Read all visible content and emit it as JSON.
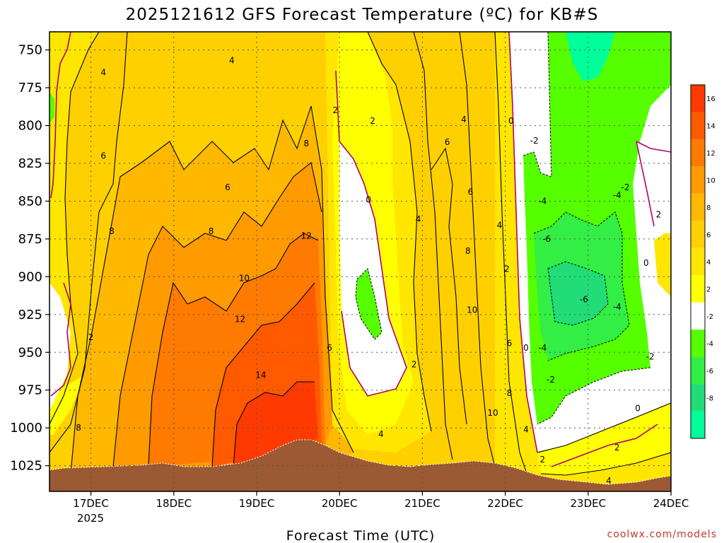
{
  "chart_data": {
    "type": "heatmap",
    "title": "2025121612 GFS Forecast Temperature (ºC) for KB#S",
    "xlabel": "Forecast Time (UTC)",
    "ylabel": "",
    "credit": "coolwx.com/models",
    "year_label": "2025",
    "x_ticks": [
      "17DEC",
      "18DEC",
      "19DEC",
      "20DEC",
      "21DEC",
      "22DEC",
      "23DEC",
      "24DEC"
    ],
    "y_ticks": [
      750,
      775,
      800,
      825,
      850,
      875,
      900,
      925,
      950,
      975,
      1000,
      1025
    ],
    "xlim_days": [
      16.5,
      24.0
    ],
    "ylim_hpa": [
      738,
      1042
    ],
    "colorbar": {
      "labels": [
        16,
        14,
        12,
        10,
        8,
        6,
        4,
        2,
        -2,
        -4,
        -6,
        -8
      ],
      "colors": [
        "#ff3a00",
        "#ff5a00",
        "#ff7a00",
        "#ff9a00",
        "#ffb800",
        "#ffd000",
        "#ffe600",
        "#ffff00",
        "#ffffff",
        "#55ff00",
        "#33ee44",
        "#22dd77",
        "#00ff99"
      ]
    },
    "contour_labels": [
      {
        "text": "4",
        "x_day": 17.15,
        "p": 765
      },
      {
        "text": "6",
        "x_day": 17.15,
        "p": 820
      },
      {
        "text": "8",
        "x_day": 17.25,
        "p": 870
      },
      {
        "text": "2",
        "x_day": 17.0,
        "p": 940
      },
      {
        "text": "8",
        "x_day": 16.85,
        "p": 1000
      },
      {
        "text": "4",
        "x_day": 18.7,
        "p": 757
      },
      {
        "text": "6",
        "x_day": 18.65,
        "p": 841
      },
      {
        "text": "8",
        "x_day": 18.45,
        "p": 870
      },
      {
        "text": "10",
        "x_day": 18.85,
        "p": 901
      },
      {
        "text": "12",
        "x_day": 18.8,
        "p": 928
      },
      {
        "text": "14",
        "x_day": 19.05,
        "p": 965
      },
      {
        "text": "8",
        "x_day": 19.6,
        "p": 812
      },
      {
        "text": "12",
        "x_day": 19.6,
        "p": 873
      },
      {
        "text": "6",
        "x_day": 19.88,
        "p": 947
      },
      {
        "text": "2",
        "x_day": 19.95,
        "p": 790
      },
      {
        "text": "2",
        "x_day": 20.4,
        "p": 797
      },
      {
        "text": "0",
        "x_day": 20.35,
        "p": 849
      },
      {
        "text": "4",
        "x_day": 20.5,
        "p": 1004
      },
      {
        "text": "2",
        "x_day": 20.9,
        "p": 958
      },
      {
        "text": "4",
        "x_day": 20.95,
        "p": 862
      },
      {
        "text": "6",
        "x_day": 21.3,
        "p": 811
      },
      {
        "text": "4",
        "x_day": 21.5,
        "p": 796
      },
      {
        "text": "6",
        "x_day": 21.58,
        "p": 844
      },
      {
        "text": "8",
        "x_day": 21.55,
        "p": 883
      },
      {
        "text": "10",
        "x_day": 21.6,
        "p": 922
      },
      {
        "text": "4",
        "x_day": 21.93,
        "p": 866
      },
      {
        "text": "2",
        "x_day": 22.02,
        "p": 895
      },
      {
        "text": "0",
        "x_day": 22.07,
        "p": 797
      },
      {
        "text": "6",
        "x_day": 22.05,
        "p": 944
      },
      {
        "text": "0",
        "x_day": 22.25,
        "p": 947
      },
      {
        "text": "8",
        "x_day": 22.05,
        "p": 977
      },
      {
        "text": "10",
        "x_day": 21.85,
        "p": 990
      },
      {
        "text": "4",
        "x_day": 22.25,
        "p": 1001
      },
      {
        "text": "2",
        "x_day": 22.45,
        "p": 1021
      },
      {
        "text": "-2",
        "x_day": 22.35,
        "p": 810
      },
      {
        "text": "-4",
        "x_day": 22.45,
        "p": 850
      },
      {
        "text": "-6",
        "x_day": 22.5,
        "p": 875
      },
      {
        "text": "-4",
        "x_day": 22.45,
        "p": 947
      },
      {
        "text": "-2",
        "x_day": 22.55,
        "p": 968
      },
      {
        "text": "-6",
        "x_day": 22.95,
        "p": 915
      },
      {
        "text": "-4",
        "x_day": 23.35,
        "p": 920
      },
      {
        "text": "-4",
        "x_day": 23.35,
        "p": 846
      },
      {
        "text": "-2",
        "x_day": 23.45,
        "p": 841
      },
      {
        "text": "0",
        "x_day": 23.7,
        "p": 891
      },
      {
        "text": "2",
        "x_day": 23.85,
        "p": 859
      },
      {
        "text": "-2",
        "x_day": 23.75,
        "p": 953
      },
      {
        "text": "0",
        "x_day": 23.6,
        "p": 987
      },
      {
        "text": "2",
        "x_day": 23.35,
        "p": 1013
      },
      {
        "text": "4",
        "x_day": 23.25,
        "p": 1035
      }
    ]
  }
}
